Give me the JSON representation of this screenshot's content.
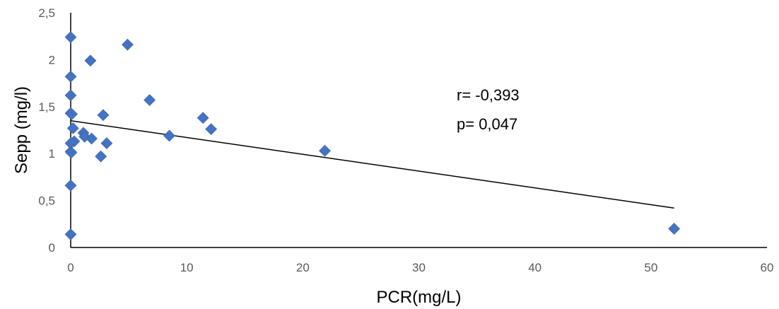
{
  "chart_data": {
    "type": "scatter",
    "xlabel": "PCR(mg/L)",
    "ylabel": "Sepp (mg/l)",
    "xlim": [
      0,
      60
    ],
    "ylim": [
      0,
      2.5
    ],
    "x_ticks": [
      0,
      10,
      20,
      30,
      40,
      50,
      60
    ],
    "y_ticks": [
      0,
      0.5,
      1,
      1.5,
      2,
      2.5
    ],
    "x_tick_labels": [
      "0",
      "10",
      "20",
      "30",
      "40",
      "50",
      "60"
    ],
    "y_tick_labels": [
      "0",
      "0,5",
      "1",
      "1,5",
      "2",
      "2,5"
    ],
    "grid": false,
    "legend": "none",
    "marker_color": "#4472C4",
    "line_color": "#000000",
    "points": [
      {
        "x": 0,
        "y": 2.24
      },
      {
        "x": 0,
        "y": 1.82
      },
      {
        "x": 0,
        "y": 1.62
      },
      {
        "x": 0,
        "y": 1.43
      },
      {
        "x": 0.1,
        "y": 1.42
      },
      {
        "x": 0.2,
        "y": 1.27
      },
      {
        "x": 0.3,
        "y": 1.13
      },
      {
        "x": 0,
        "y": 1.11
      },
      {
        "x": 0,
        "y": 1.02
      },
      {
        "x": 0.05,
        "y": 1.01
      },
      {
        "x": 0,
        "y": 0.66
      },
      {
        "x": 0,
        "y": 0.14
      },
      {
        "x": 1.1,
        "y": 1.22
      },
      {
        "x": 1.2,
        "y": 1.18
      },
      {
        "x": 1.8,
        "y": 1.16
      },
      {
        "x": 1.7,
        "y": 1.99
      },
      {
        "x": 2.6,
        "y": 0.97
      },
      {
        "x": 2.8,
        "y": 1.41
      },
      {
        "x": 3.1,
        "y": 1.11
      },
      {
        "x": 4.9,
        "y": 2.16
      },
      {
        "x": 6.8,
        "y": 1.57
      },
      {
        "x": 8.5,
        "y": 1.19
      },
      {
        "x": 11.4,
        "y": 1.38
      },
      {
        "x": 12.1,
        "y": 1.26
      },
      {
        "x": 21.9,
        "y": 1.03
      },
      {
        "x": 52,
        "y": 0.2
      }
    ],
    "trendline": {
      "x": [
        0,
        52
      ],
      "y": [
        1.35,
        0.42
      ]
    },
    "annotations": [
      "r= -0,393",
      "p= 0,047"
    ]
  }
}
